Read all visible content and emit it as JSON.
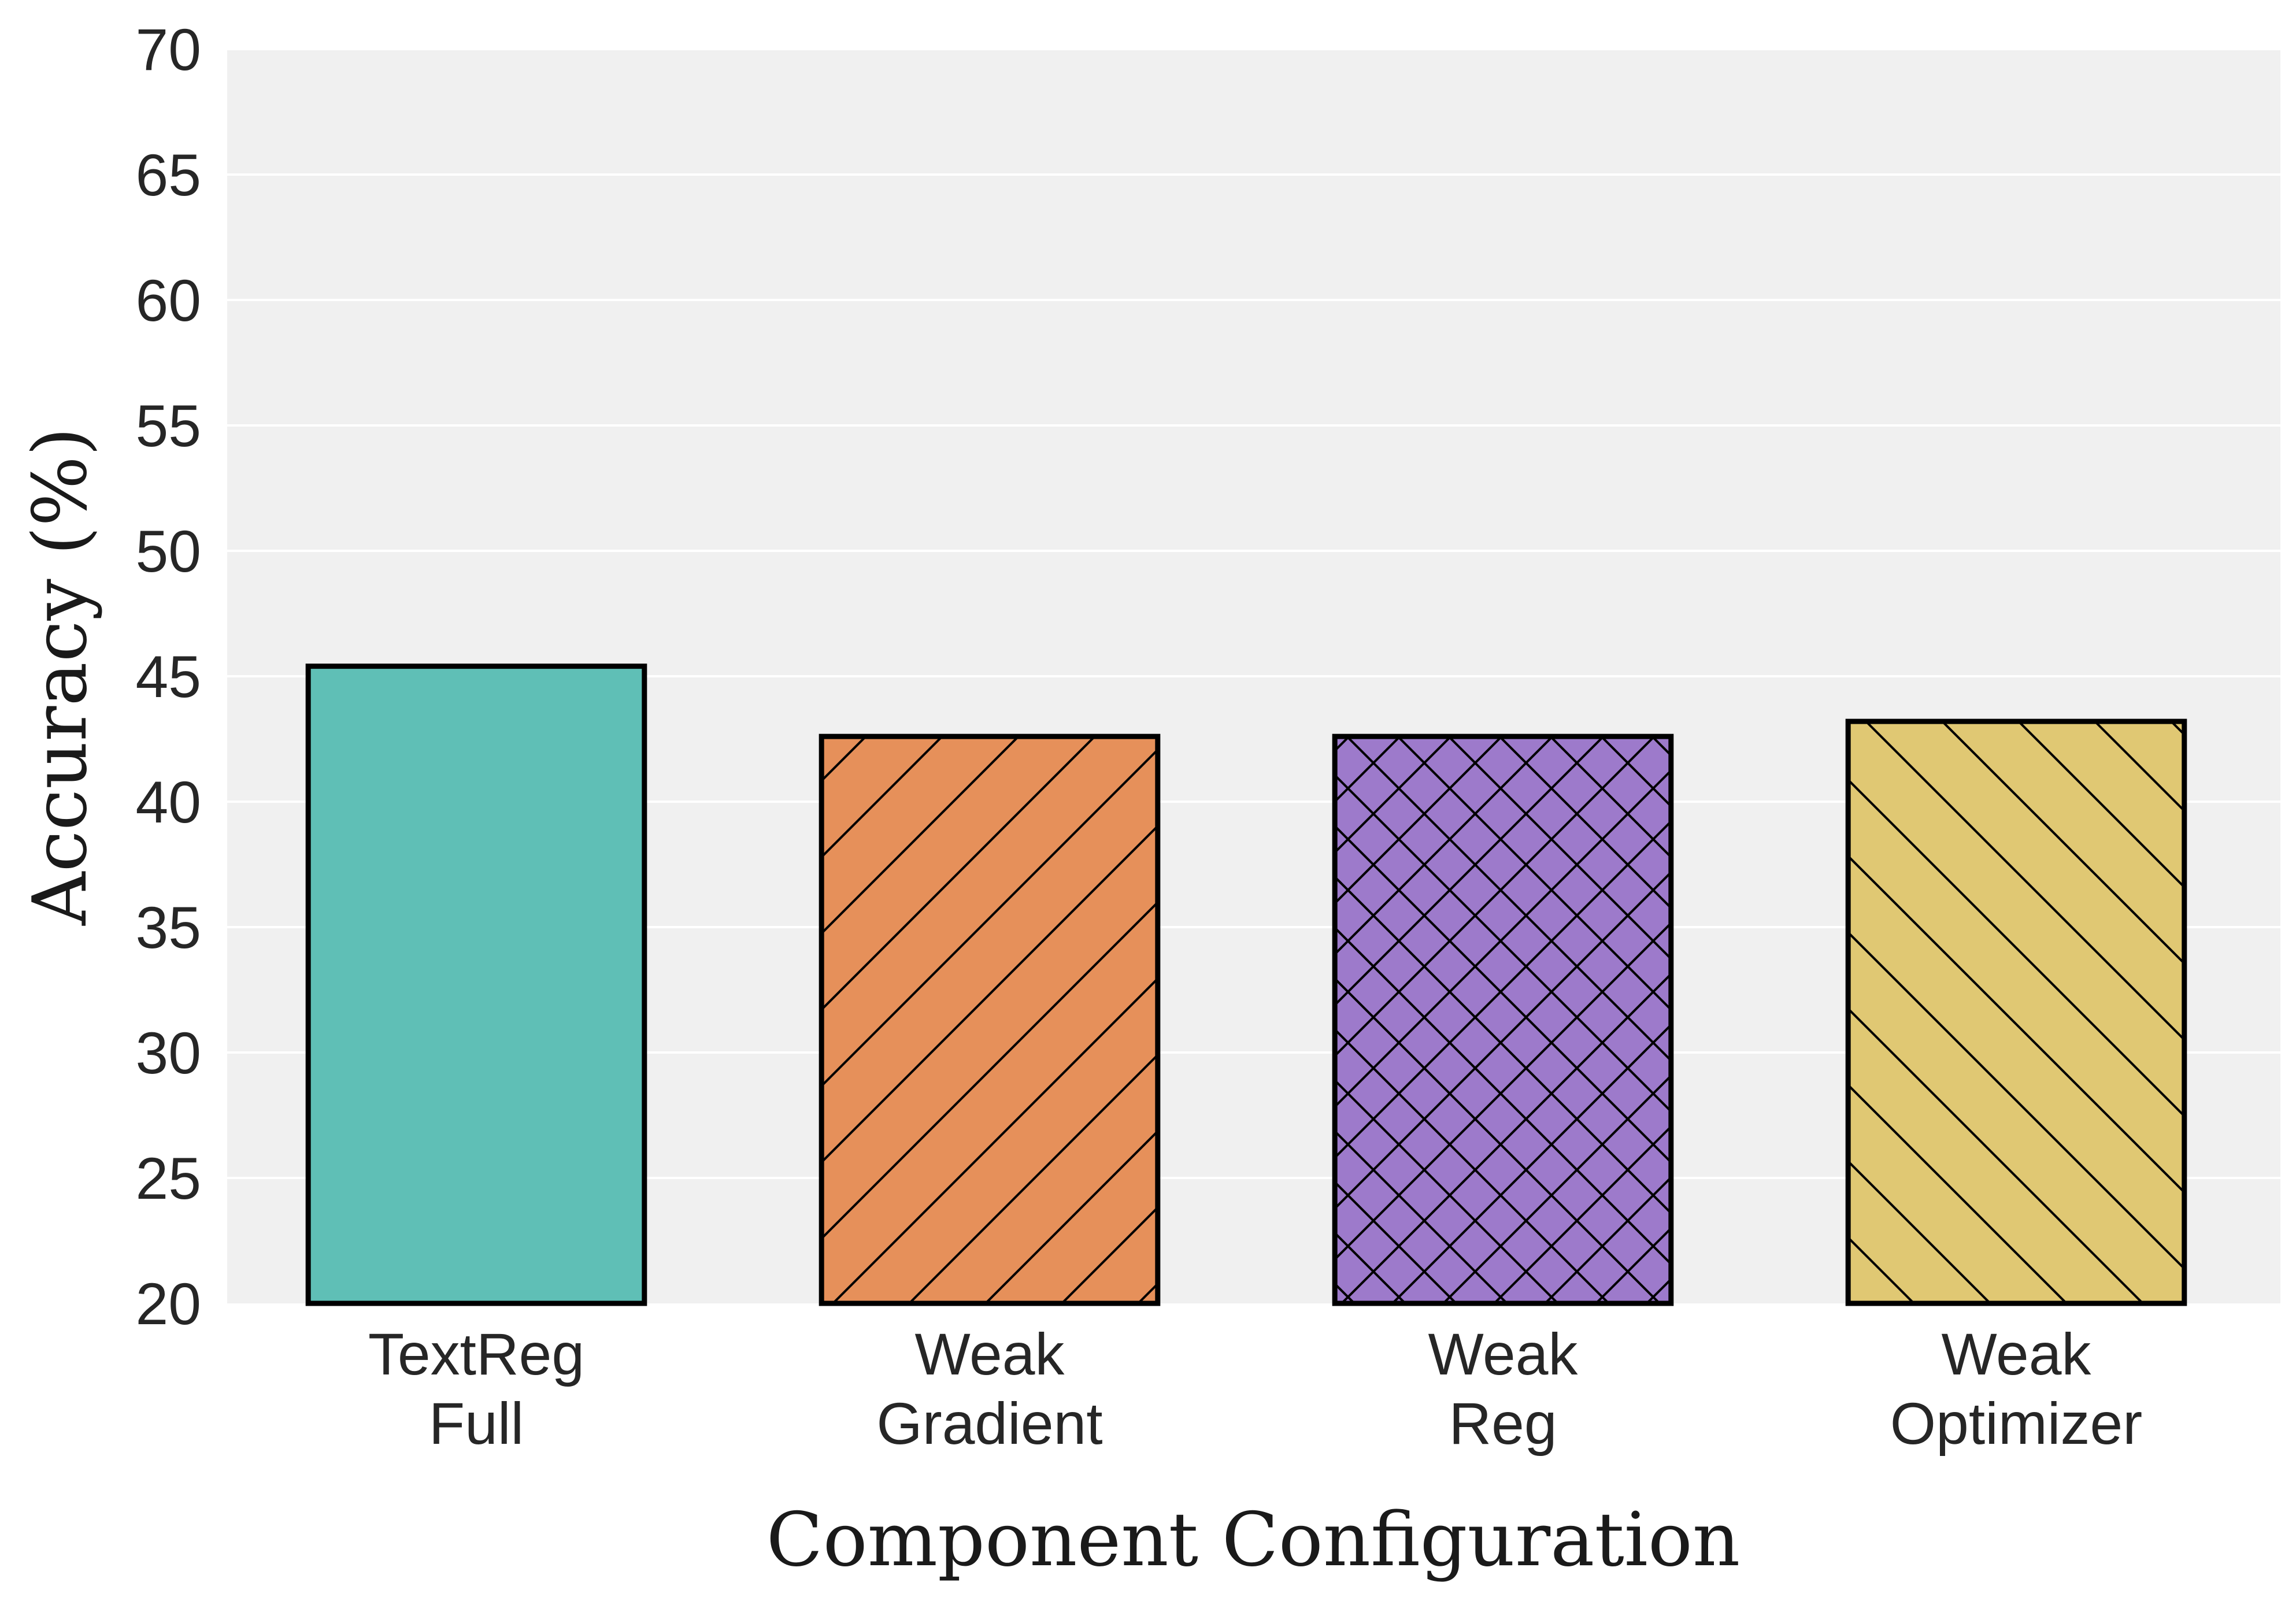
{
  "chart_data": {
    "type": "bar",
    "categories": [
      [
        "TextReg",
        "Full"
      ],
      [
        "Weak",
        "Gradient"
      ],
      [
        "Weak",
        "Reg"
      ],
      [
        "Weak",
        "Optimizer"
      ]
    ],
    "values": [
      45.4,
      42.6,
      42.6,
      43.2
    ],
    "title": "",
    "xlabel": "Component Configuration",
    "ylabel": "Accuracy (%)",
    "ylim": [
      20,
      70
    ],
    "yticks": [
      20,
      25,
      30,
      35,
      40,
      45,
      50,
      55,
      60,
      65,
      70
    ],
    "grid": "horizontal",
    "background": "#f0f0f0",
    "bar_colors": [
      "#5fbfb6",
      "#e6905a",
      "#9d7acb",
      "#e0c873"
    ],
    "bar_hatches": [
      "none",
      "forward-diagonal",
      "cross-diagonal",
      "back-diagonal"
    ],
    "edge_color": "#000000"
  }
}
